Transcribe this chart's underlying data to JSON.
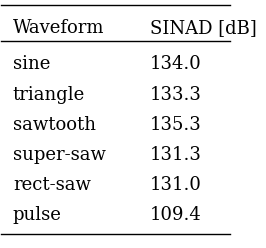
{
  "col_headers": [
    "Waveform",
    "SINAD [dB]"
  ],
  "rows": [
    [
      "sine",
      "134.0"
    ],
    [
      "triangle",
      "133.3"
    ],
    [
      "sawtooth",
      "135.3"
    ],
    [
      "super-saw",
      "131.3"
    ],
    [
      "rect-saw",
      "131.0"
    ],
    [
      "pulse",
      "109.4"
    ]
  ],
  "background_color": "#ffffff",
  "text_color": "#000000",
  "header_fontsize": 13,
  "row_fontsize": 13,
  "fig_width": 2.66,
  "fig_height": 2.48
}
